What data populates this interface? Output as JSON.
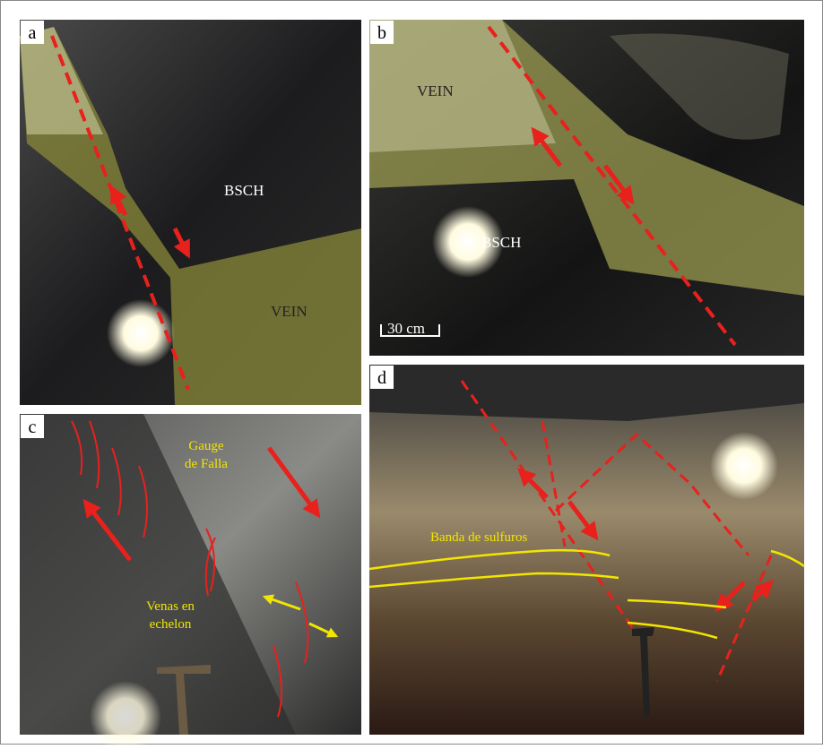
{
  "panels": [
    {
      "label": "a",
      "annotations": [
        "BSCH",
        "VEIN"
      ]
    },
    {
      "label": "b",
      "annotations": [
        "VEIN",
        "BSCH"
      ],
      "scale_bar": "30 cm"
    },
    {
      "label": "c",
      "annotations": [
        [
          "Gauge",
          "de Falla"
        ],
        [
          "Venas en",
          "echelon"
        ]
      ]
    },
    {
      "label": "d",
      "annotations": [
        "Banda de sulfuros"
      ]
    }
  ]
}
